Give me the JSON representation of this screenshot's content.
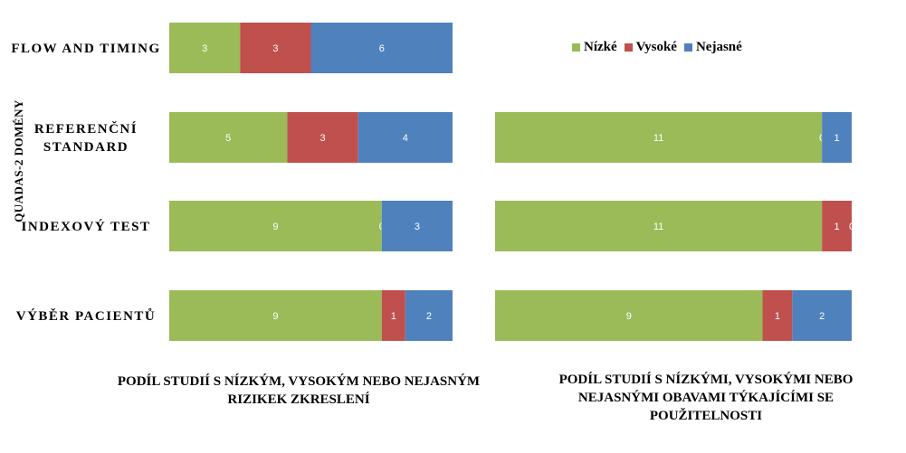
{
  "colors": {
    "Nízké": "#9BBB59",
    "Vysoké": "#C0504D",
    "Nejasné": "#4F81BD"
  },
  "legend": {
    "items": [
      {
        "label": "Nízké",
        "color": "#9BBB59"
      },
      {
        "label": "Vysoké",
        "color": "#C0504D"
      },
      {
        "label": "Nejasné",
        "color": "#4F81BD"
      }
    ]
  },
  "titles": {
    "left": [
      "PODÍL STUDIÍ S NÍZKÝM, VYSOKÝM NEBO NEJASNÝM",
      "RIZIKEK ZKRESLENÍ"
    ],
    "right": [
      "PODÍL STUDIÍ S NÍZKÝMI, VYSOKÝMI NEBO",
      "NEJASNÝMI OBAVAMI TÝKAJÍCÍMI SE",
      "POUŽITELNOSTI"
    ]
  },
  "y_axis_label": "QUADAS-2 DOMÉNY",
  "categories": [
    {
      "lines": [
        "FLOW AND TIMING"
      ]
    },
    {
      "lines": [
        "REFERENČNÍ",
        "STANDARD"
      ]
    },
    {
      "lines": [
        "INDEXOVÝ TEST"
      ]
    },
    {
      "lines": [
        "VÝBĚR PACIENTŮ"
      ]
    }
  ],
  "chart_data": [
    {
      "type": "bar",
      "orientation": "horizontal",
      "stacked": "percent",
      "title": "PODÍL STUDIÍ S NÍZKÝM, VYSOKÝM NEBO NEJASNÝM RIZIKEK ZKRESLENÍ",
      "ylabel": "QUADAS-2 DOMÉNY",
      "categories": [
        "FLOW AND TIMING",
        "REFERENČNÍ STANDARD",
        "INDEXOVÝ TEST",
        "VÝBĚR PACIENTŮ"
      ],
      "series": [
        {
          "name": "Nízké",
          "values": [
            3,
            5,
            9,
            9
          ]
        },
        {
          "name": "Vysoké",
          "values": [
            3,
            3,
            0,
            1
          ]
        },
        {
          "name": "Nejasné",
          "values": [
            6,
            4,
            3,
            2
          ]
        }
      ]
    },
    {
      "type": "bar",
      "orientation": "horizontal",
      "stacked": "percent",
      "title": "PODÍL STUDIÍ S NÍZKÝMI, VYSOKÝMI NEBO NEJASNÝMI OBAVAMI TÝKAJÍCÍMI SE POUŽITELNOSTI",
      "categories": [
        "REFERENČNÍ STANDARD",
        "INDEXOVÝ TEST",
        "VÝBĚR PACIENTŮ"
      ],
      "series": [
        {
          "name": "Nízké",
          "values": [
            11,
            11,
            9
          ]
        },
        {
          "name": "Vysoké",
          "values": [
            0,
            1,
            1
          ]
        },
        {
          "name": "Nejasné",
          "values": [
            1,
            0,
            2
          ]
        }
      ]
    }
  ]
}
